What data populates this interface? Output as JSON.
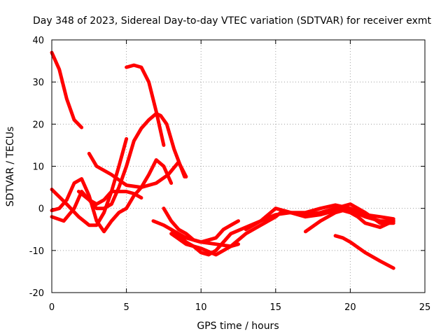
{
  "chart_data": {
    "type": "line",
    "title": "Day 348 of 2023, Sidereal Day-to-day VTEC variation (SDTVAR) for receiver exmt",
    "xlabel": "GPS time / hours",
    "ylabel": "SDTVAR / TECUs",
    "xlim": [
      0,
      25
    ],
    "ylim": [
      -20,
      40
    ],
    "xticks": [
      0,
      5,
      10,
      15,
      20,
      25
    ],
    "yticks": [
      -20,
      -10,
      0,
      10,
      20,
      30,
      40
    ],
    "grid": true,
    "line_color": "#ff0000",
    "series": [
      {
        "name": "s1",
        "points": [
          [
            0,
            37
          ],
          [
            0.5,
            33
          ],
          [
            1,
            26
          ],
          [
            1.5,
            21
          ],
          [
            2,
            19.2
          ]
        ]
      },
      {
        "name": "s2",
        "points": [
          [
            5,
            33.5
          ],
          [
            5.5,
            34
          ],
          [
            6,
            33.5
          ],
          [
            6.5,
            30
          ],
          [
            7,
            23
          ],
          [
            7.5,
            15
          ]
        ]
      },
      {
        "name": "s3",
        "points": [
          [
            2.5,
            13
          ],
          [
            3,
            10
          ],
          [
            4,
            8
          ],
          [
            5,
            5.5
          ],
          [
            6,
            5
          ],
          [
            7,
            6
          ],
          [
            7.8,
            8
          ],
          [
            8.5,
            11
          ],
          [
            9,
            7.5
          ]
        ]
      },
      {
        "name": "s4",
        "points": [
          [
            0,
            4.5
          ],
          [
            1,
            1
          ],
          [
            1.8,
            -2
          ],
          [
            2.5,
            -4
          ],
          [
            3,
            -4
          ],
          [
            3.5,
            -1
          ],
          [
            4,
            4
          ],
          [
            4.5,
            10
          ],
          [
            5,
            16.5
          ]
        ]
      },
      {
        "name": "s5",
        "points": [
          [
            0,
            -2
          ],
          [
            0.8,
            -3
          ],
          [
            1.5,
            0
          ],
          [
            2,
            4
          ],
          [
            2.5,
            2
          ],
          [
            3,
            0
          ],
          [
            3.5,
            0
          ],
          [
            4,
            1
          ],
          [
            4.5,
            5
          ],
          [
            5,
            10
          ],
          [
            5.5,
            16
          ],
          [
            6,
            19
          ],
          [
            6.5,
            21
          ],
          [
            7,
            22.5
          ],
          [
            7.3,
            22
          ],
          [
            7.7,
            20
          ],
          [
            8.2,
            14
          ],
          [
            8.9,
            7.5
          ]
        ]
      },
      {
        "name": "s6",
        "points": [
          [
            0,
            -0.5
          ],
          [
            0.5,
            0
          ],
          [
            1,
            2
          ],
          [
            1.5,
            6
          ],
          [
            2,
            7
          ],
          [
            2.5,
            3
          ],
          [
            3,
            -3
          ],
          [
            3.5,
            -5.5
          ],
          [
            4,
            -3
          ],
          [
            4.5,
            -1
          ],
          [
            5,
            0
          ],
          [
            5.5,
            3
          ],
          [
            6,
            5
          ],
          [
            6.5,
            8
          ],
          [
            7,
            11.5
          ],
          [
            7.5,
            10
          ],
          [
            8,
            6
          ]
        ]
      },
      {
        "name": "s7",
        "points": [
          [
            1.8,
            4
          ],
          [
            2.5,
            2
          ],
          [
            3,
            1
          ],
          [
            3.5,
            2
          ],
          [
            4,
            4
          ],
          [
            4.5,
            4
          ],
          [
            5,
            4
          ],
          [
            5.5,
            3.5
          ],
          [
            6,
            2.5
          ]
        ]
      },
      {
        "name": "s8",
        "points": [
          [
            7.5,
            0
          ],
          [
            8,
            -3
          ],
          [
            8.5,
            -5
          ],
          [
            9,
            -6
          ],
          [
            9.5,
            -7.5
          ],
          [
            10,
            -8
          ],
          [
            10.5,
            -7.5
          ],
          [
            11,
            -7
          ],
          [
            11.5,
            -5
          ],
          [
            12,
            -4
          ],
          [
            12.5,
            -3
          ]
        ]
      },
      {
        "name": "s9",
        "points": [
          [
            6.8,
            -3
          ],
          [
            7.5,
            -4
          ],
          [
            8,
            -5
          ],
          [
            8.5,
            -6
          ],
          [
            9,
            -7
          ],
          [
            10,
            -8
          ],
          [
            11,
            -8.5
          ],
          [
            12,
            -9
          ],
          [
            12.5,
            -8.5
          ]
        ]
      },
      {
        "name": "s10",
        "points": [
          [
            8,
            -5
          ],
          [
            8.5,
            -6.5
          ],
          [
            9,
            -8
          ],
          [
            9.5,
            -9
          ],
          [
            10,
            -10.5
          ],
          [
            10.5,
            -11
          ],
          [
            11,
            -10
          ],
          [
            11.5,
            -8
          ],
          [
            12,
            -6
          ],
          [
            13,
            -4.5
          ],
          [
            14,
            -3
          ],
          [
            15,
            -1.5
          ],
          [
            16,
            -1
          ],
          [
            17,
            -1.5
          ],
          [
            18,
            -1
          ],
          [
            19,
            0
          ],
          [
            20,
            -0.5
          ],
          [
            21,
            -2
          ],
          [
            22,
            -3
          ],
          [
            22.9,
            -3
          ]
        ]
      },
      {
        "name": "s11",
        "points": [
          [
            8,
            -6
          ],
          [
            9,
            -8.5
          ],
          [
            10,
            -9.5
          ],
          [
            11,
            -11
          ],
          [
            12,
            -9
          ],
          [
            13,
            -6
          ],
          [
            14,
            -4
          ],
          [
            15,
            -2
          ],
          [
            15.5,
            -0.5
          ],
          [
            16,
            -1
          ],
          [
            17,
            -1
          ],
          [
            18,
            0
          ],
          [
            19,
            0.8
          ],
          [
            20,
            0
          ],
          [
            21,
            -1.5
          ],
          [
            22,
            -2
          ],
          [
            22.9,
            -2.5
          ]
        ]
      },
      {
        "name": "s12",
        "points": [
          [
            13,
            -5
          ],
          [
            14,
            -3
          ],
          [
            15,
            0
          ],
          [
            16,
            -1
          ],
          [
            17,
            -2
          ],
          [
            18,
            -1.5
          ],
          [
            19,
            -0.5
          ],
          [
            19.5,
            0.5
          ],
          [
            20,
            1
          ],
          [
            21,
            -1
          ],
          [
            22,
            -3.5
          ],
          [
            22.9,
            -3.5
          ]
        ]
      },
      {
        "name": "s13",
        "points": [
          [
            17,
            -5.5
          ],
          [
            18,
            -3
          ],
          [
            19,
            -1
          ],
          [
            19.5,
            -0.5
          ],
          [
            20,
            -1
          ],
          [
            20.5,
            -2
          ],
          [
            21,
            -3.5
          ],
          [
            22,
            -4.5
          ],
          [
            22.9,
            -3
          ]
        ]
      },
      {
        "name": "s14",
        "points": [
          [
            19,
            -6.5
          ],
          [
            19.5,
            -7
          ],
          [
            20,
            -8
          ],
          [
            21,
            -10.5
          ],
          [
            22,
            -12.5
          ],
          [
            22.9,
            -14.2
          ]
        ]
      }
    ]
  }
}
